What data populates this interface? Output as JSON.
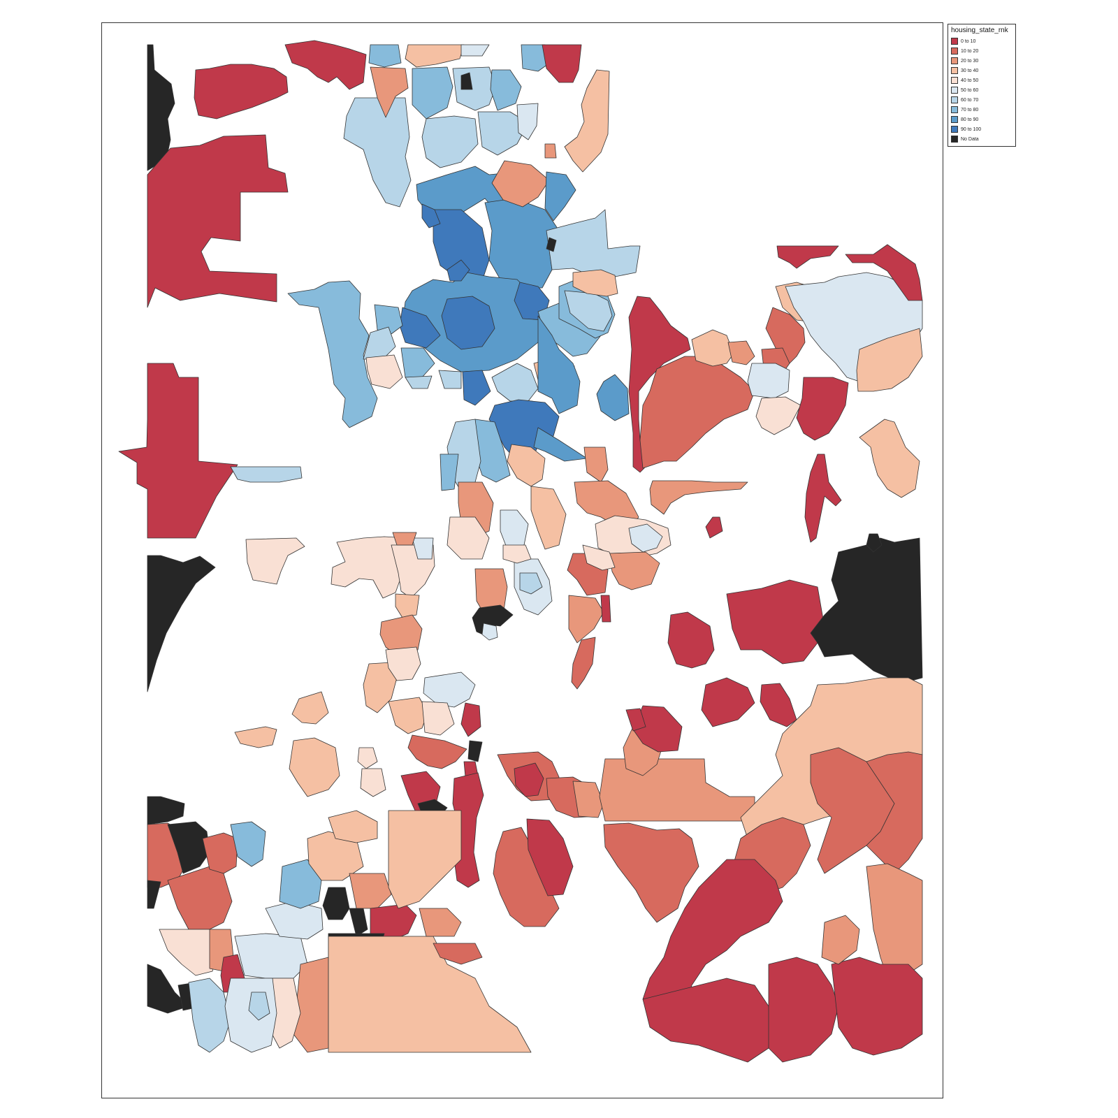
{
  "legend": {
    "title": "housing_state_rnk",
    "items": [
      {
        "label": "0 to 10",
        "color": "#c0394a"
      },
      {
        "label": "10 to 20",
        "color": "#d76a5e"
      },
      {
        "label": "20 to 30",
        "color": "#e8977b"
      },
      {
        "label": "30 to 40",
        "color": "#f5c0a3"
      },
      {
        "label": "40 to 50",
        "color": "#f9e0d4"
      },
      {
        "label": "50 to 60",
        "color": "#dae7f1"
      },
      {
        "label": "60 to 70",
        "color": "#b7d5e8"
      },
      {
        "label": "70 to 80",
        "color": "#87bbdb"
      },
      {
        "label": "80 to 90",
        "color": "#5b9bca"
      },
      {
        "label": "90 to 100",
        "color": "#3f79bb"
      },
      {
        "label": "No Data",
        "color": "#262626"
      }
    ]
  }
}
